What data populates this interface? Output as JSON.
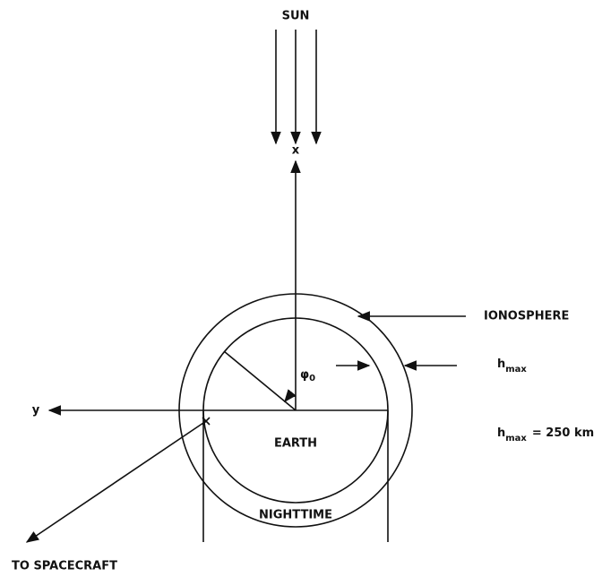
{
  "labels": {
    "sun": "SUN",
    "x_axis": "x",
    "y_axis": "y",
    "angle": {
      "symbol": "φ",
      "subscript": "0"
    },
    "ionosphere": "IONOSPHERE",
    "h_max": {
      "symbol": "h",
      "subscript": "max"
    },
    "h_max_value": {
      "symbol": "h",
      "subscript": "max",
      "text": "= 250 km"
    },
    "earth": "EARTH",
    "nighttime": "NIGHTTIME",
    "spacecraft": "TO SPACECRAFT"
  }
}
